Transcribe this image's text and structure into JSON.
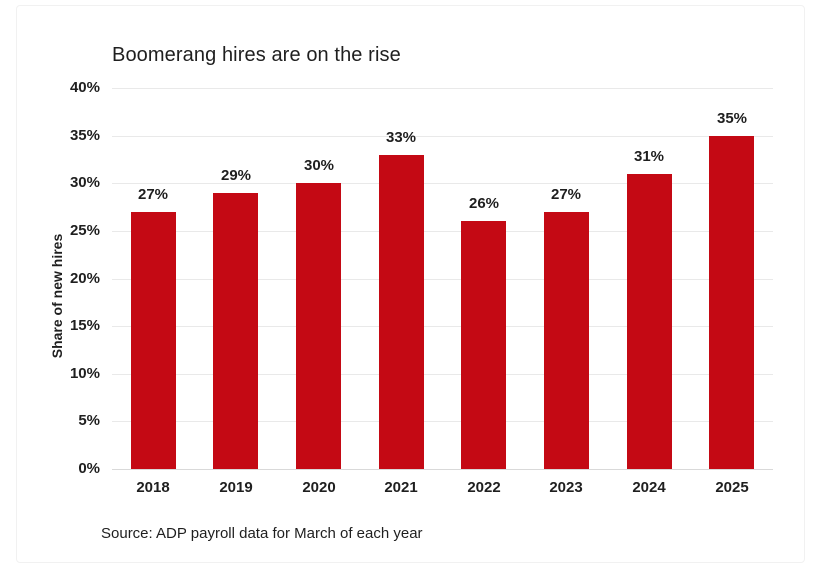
{
  "chart_data": {
    "type": "bar",
    "title": "Boomerang hires are on the rise",
    "xlabel": "",
    "ylabel": "Share of new hires",
    "source_note": "Source: ADP payroll data for March of each year",
    "categories": [
      "2018",
      "2019",
      "2020",
      "2021",
      "2022",
      "2023",
      "2024",
      "2025"
    ],
    "values": [
      27,
      29,
      30,
      33,
      26,
      27,
      31,
      35
    ],
    "value_labels": [
      "27%",
      "29%",
      "30%",
      "33%",
      "26%",
      "27%",
      "31%",
      "35%"
    ],
    "ylim": [
      0,
      40
    ],
    "ytick_values": [
      40,
      35,
      30,
      25,
      20,
      15,
      10,
      5,
      0
    ],
    "ytick_labels": [
      "40%",
      "35%",
      "30%",
      "25%",
      "20%",
      "15%",
      "10%",
      "5%",
      "0%"
    ],
    "grid": true,
    "legend": "none"
  },
  "colors": {
    "bar": "#C40914",
    "gridline": "#E9E9E9",
    "axis_line": "#D9D9D9",
    "text": "#1F1F1F",
    "card_border": "#F1F1F1",
    "background": "#FFFFFF"
  }
}
